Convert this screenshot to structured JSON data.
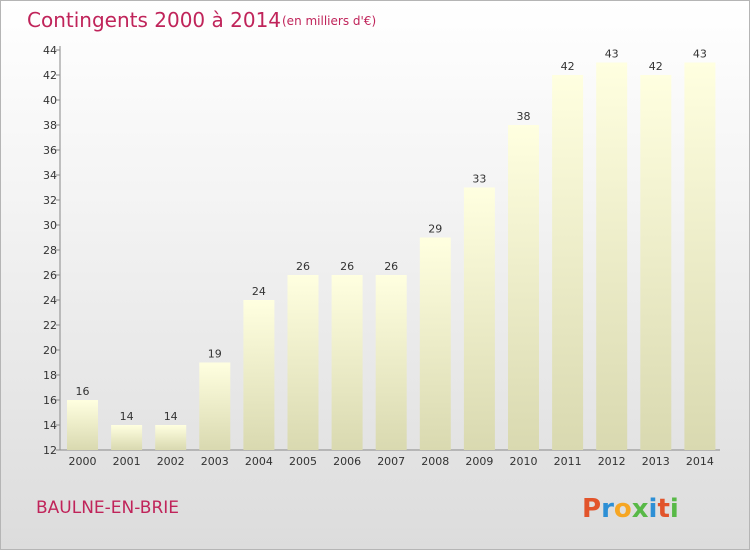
{
  "header": {
    "title": "Contingents 2000 à 2014",
    "subtitle": "(en milliers d'€)"
  },
  "footer": {
    "commune": "BAULNE-EN-BRIE",
    "logo_text": "Proxiti"
  },
  "colors": {
    "title": "#c0245a",
    "bar_top": "#ffffe0",
    "bar_bottom": "#d9d9b0",
    "logo_letters": [
      "#e2542b",
      "#2d8fd5",
      "#f6a623",
      "#58b947",
      "#2d8fd5",
      "#e2542b",
      "#58b947"
    ]
  },
  "chart_data": {
    "type": "bar",
    "categories": [
      "2000",
      "2001",
      "2002",
      "2003",
      "2004",
      "2005",
      "2006",
      "2007",
      "2008",
      "2009",
      "2010",
      "2011",
      "2012",
      "2013",
      "2014"
    ],
    "values": [
      16,
      14,
      14,
      19,
      24,
      26,
      26,
      26,
      29,
      33,
      38,
      42,
      43,
      42,
      43
    ],
    "title": "Contingents 2000 à 2014",
    "subtitle": "(en milliers d'€)",
    "xlabel": "",
    "ylabel": "",
    "ylim": [
      12,
      44
    ],
    "yticks": [
      12,
      14,
      16,
      18,
      20,
      22,
      24,
      26,
      28,
      30,
      32,
      34,
      36,
      38,
      40,
      42,
      44
    ],
    "grid": false,
    "legend": "none"
  }
}
